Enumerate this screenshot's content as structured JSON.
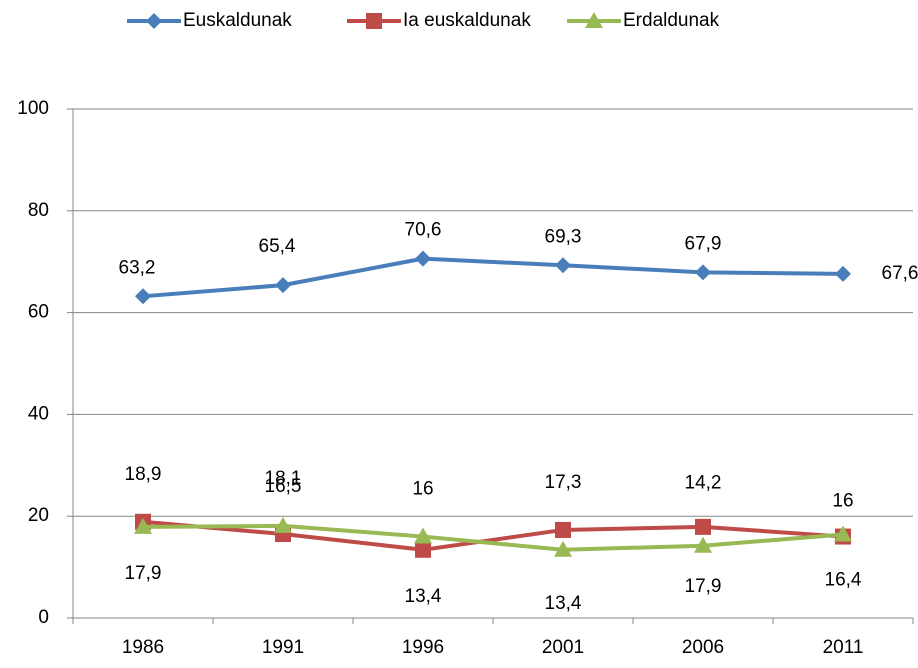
{
  "chart_data": {
    "type": "line",
    "categories": [
      "1986",
      "1991",
      "1996",
      "2001",
      "2006",
      "2011"
    ],
    "series": [
      {
        "name": "Euskaldunak",
        "color": "#4a7ebb",
        "marker": "diamond",
        "values": [
          63.2,
          65.4,
          70.6,
          69.3,
          67.9,
          67.6
        ],
        "value_labels": [
          "63,2",
          "65,4",
          "70,6",
          "69,3",
          "67,9",
          "67,6"
        ]
      },
      {
        "name": "Ia euskaldunak",
        "color": "#be4b48",
        "marker": "square",
        "values": [
          18.9,
          16.5,
          13.4,
          17.3,
          17.9,
          16
        ],
        "value_labels": [
          "18,9",
          "16,5",
          "13,4",
          "17,3",
          "17,9",
          "16"
        ]
      },
      {
        "name": "Erdaldunak",
        "color": "#98b954",
        "marker": "triangle",
        "values": [
          17.9,
          18.1,
          16,
          13.4,
          14.2,
          16.4
        ],
        "value_labels": [
          "17,9",
          "18,1",
          "16",
          "13,4",
          "14,2",
          "16,4"
        ]
      }
    ],
    "ylim": [
      0,
      100
    ],
    "yticks": [
      0,
      20,
      40,
      60,
      80,
      100
    ],
    "grid": true
  }
}
